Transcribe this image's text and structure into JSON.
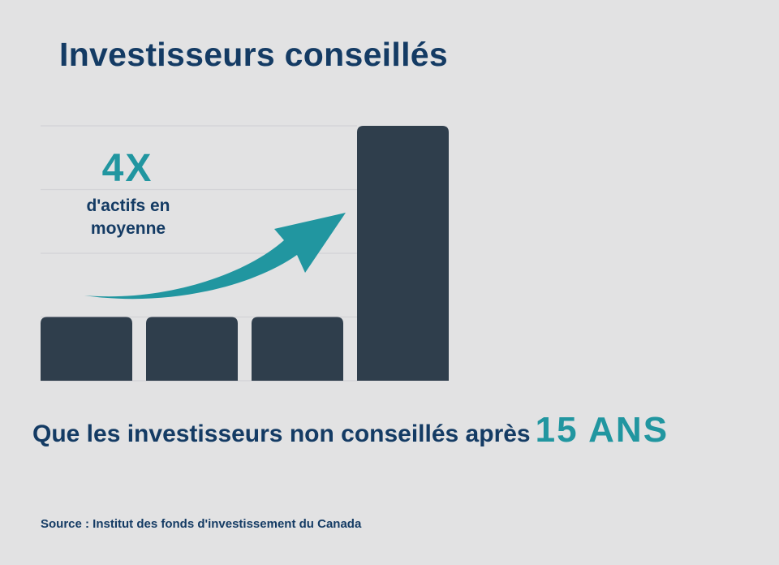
{
  "title": "Investisseurs conseillés",
  "annotation": {
    "big_value": "4X",
    "description_line1": "d'actifs en",
    "description_line2": "moyenne"
  },
  "subtitle": {
    "text": "Que les investisseurs non conseillés après",
    "highlight": "15 ANS"
  },
  "source": "Source : Institut des fonds d'investissement du Canada",
  "colors": {
    "background": "#e2e2e3",
    "bar": "#2f3e4c",
    "accent": "#2196a0",
    "text": "#143b64",
    "grid": "#d3d3d6"
  },
  "chart_data": {
    "type": "bar",
    "categories": [
      "",
      "",
      "",
      ""
    ],
    "values": [
      1,
      1,
      1,
      4
    ],
    "ylim": [
      0,
      4
    ],
    "grid": true,
    "annotation_arrow": "curved arrow pointing toward the tallest bar"
  }
}
